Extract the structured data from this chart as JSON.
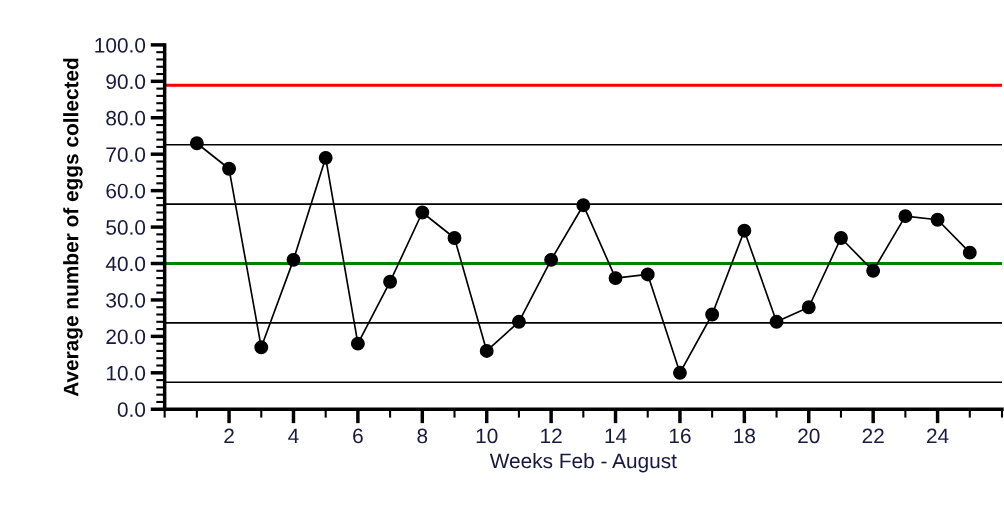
{
  "chart_data": {
    "type": "line",
    "xlabel": "Weeks Feb - August",
    "ylabel": "Average number of eggs collected",
    "x": [
      1,
      2,
      3,
      4,
      5,
      6,
      7,
      8,
      9,
      10,
      11,
      12,
      13,
      14,
      15,
      16,
      17,
      18,
      19,
      20,
      21,
      22,
      23,
      24,
      25
    ],
    "series": [
      {
        "color": "#000000",
        "values": [
          73,
          66,
          17,
          41,
          69,
          18,
          35,
          54,
          47,
          16,
          24,
          41,
          56,
          36,
          37,
          10,
          26,
          49,
          24,
          28,
          47,
          38,
          53,
          52,
          43
        ]
      }
    ],
    "marker": "circle",
    "line_style": "solid",
    "grid": false,
    "legend": false,
    "xlim": [
      0,
      26
    ],
    "xticks": [
      2,
      4,
      6,
      8,
      10,
      12,
      14,
      16,
      18,
      20,
      22,
      24
    ],
    "ylim": [
      0,
      100
    ],
    "yticks": [
      {
        "value": 0,
        "label": "0.0"
      },
      {
        "value": 10,
        "label": "10.0"
      },
      {
        "value": 20,
        "label": "20.0"
      },
      {
        "value": 30,
        "label": "30.0"
      },
      {
        "value": 40,
        "label": "40.0"
      },
      {
        "value": 50,
        "label": "50.0"
      },
      {
        "value": 60,
        "label": "60.0"
      },
      {
        "value": 70,
        "label": "70.0"
      },
      {
        "value": 80,
        "label": "80.0"
      },
      {
        "value": 90,
        "label": "90.0"
      },
      {
        "value": 100,
        "label": "100.0"
      }
    ],
    "ref_lines": [
      {
        "axis": "y",
        "value": 88.9,
        "color": "#ff0000"
      },
      {
        "axis": "y",
        "value": 72.6,
        "color": "#000000"
      },
      {
        "axis": "y",
        "value": 56.3,
        "color": "#000000"
      },
      {
        "axis": "y",
        "value": 40,
        "color": "#008000"
      },
      {
        "axis": "y",
        "value": 23.7,
        "color": "#000000"
      },
      {
        "axis": "y",
        "value": 7.4,
        "color": "#000000"
      }
    ]
  }
}
